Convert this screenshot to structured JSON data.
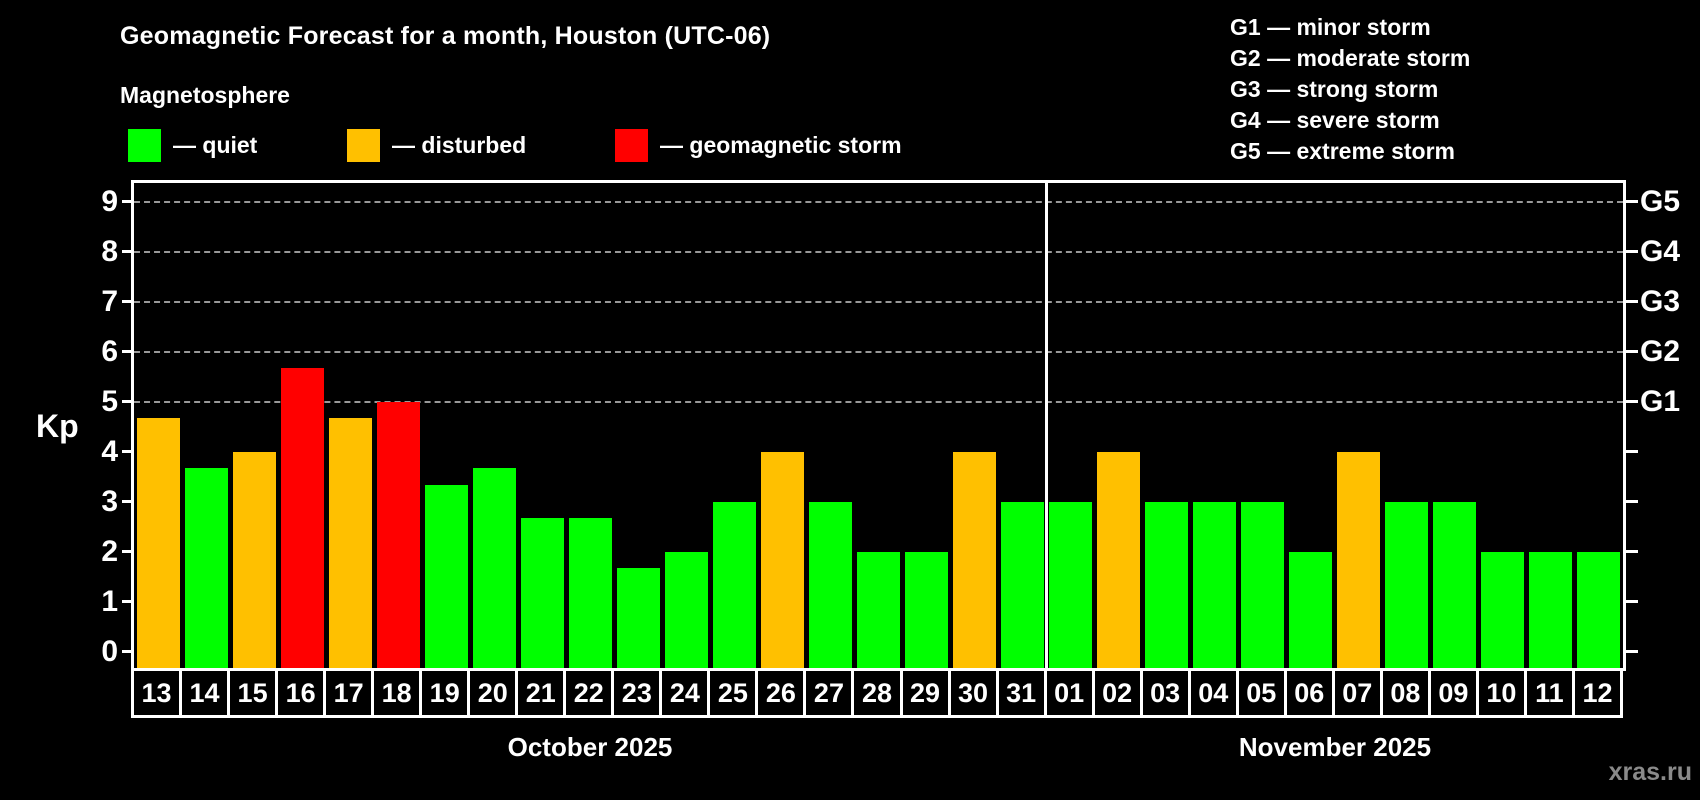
{
  "title": "Geomagnetic Forecast for a month, Houston (UTC-06)",
  "subtitle": "Magnetosphere",
  "legend": {
    "quiet_label": "— quiet",
    "disturbed_label": "— disturbed",
    "storm_label": "— geomagnetic storm"
  },
  "g_legend": [
    "G1 — minor storm",
    "G2 — moderate storm",
    "G3 — strong storm",
    "G4 — severe storm",
    "G5 — extreme storm"
  ],
  "watermark": "xras.ru",
  "colors": {
    "quiet": "#00ff00",
    "disturbed": "#ffc000",
    "storm": "#ff0000",
    "grid": "#999999",
    "axis": "#ffffff",
    "watermark": "#8a8a8a"
  },
  "chart_data": {
    "type": "bar",
    "title": "Geomagnetic Forecast for a month, Houston (UTC-06)",
    "ylabel": "Kp",
    "ylim": [
      -0.326,
      9.374
    ],
    "yticks": [
      0,
      1,
      2,
      3,
      4,
      5,
      6,
      7,
      8,
      9
    ],
    "grid_kp": [
      5,
      6,
      7,
      8,
      9
    ],
    "right_axis": [
      {
        "kp": 5,
        "label": "G1"
      },
      {
        "kp": 6,
        "label": "G2"
      },
      {
        "kp": 7,
        "label": "G3"
      },
      {
        "kp": 8,
        "label": "G4"
      },
      {
        "kp": 9,
        "label": "G5"
      }
    ],
    "legend_position": "top-left",
    "grid": "dashed-horizontal-on-storm-levels",
    "months": [
      {
        "label": "October 2025"
      },
      {
        "label": "November 2025"
      }
    ],
    "bars": [
      {
        "month": "October 2025",
        "day": "13",
        "kp": 4.67,
        "status": "disturbed"
      },
      {
        "month": "October 2025",
        "day": "14",
        "kp": 3.67,
        "status": "quiet"
      },
      {
        "month": "October 2025",
        "day": "15",
        "kp": 4.0,
        "status": "disturbed"
      },
      {
        "month": "October 2025",
        "day": "16",
        "kp": 5.67,
        "status": "storm"
      },
      {
        "month": "October 2025",
        "day": "17",
        "kp": 4.67,
        "status": "disturbed"
      },
      {
        "month": "October 2025",
        "day": "18",
        "kp": 5.0,
        "status": "storm"
      },
      {
        "month": "October 2025",
        "day": "19",
        "kp": 3.33,
        "status": "quiet"
      },
      {
        "month": "October 2025",
        "day": "20",
        "kp": 3.67,
        "status": "quiet"
      },
      {
        "month": "October 2025",
        "day": "21",
        "kp": 2.67,
        "status": "quiet"
      },
      {
        "month": "October 2025",
        "day": "22",
        "kp": 2.67,
        "status": "quiet"
      },
      {
        "month": "October 2025",
        "day": "23",
        "kp": 1.67,
        "status": "quiet"
      },
      {
        "month": "October 2025",
        "day": "24",
        "kp": 2.0,
        "status": "quiet"
      },
      {
        "month": "October 2025",
        "day": "25",
        "kp": 3.0,
        "status": "quiet"
      },
      {
        "month": "October 2025",
        "day": "26",
        "kp": 4.0,
        "status": "disturbed"
      },
      {
        "month": "October 2025",
        "day": "27",
        "kp": 3.0,
        "status": "quiet"
      },
      {
        "month": "October 2025",
        "day": "28",
        "kp": 2.0,
        "status": "quiet"
      },
      {
        "month": "October 2025",
        "day": "29",
        "kp": 2.0,
        "status": "quiet"
      },
      {
        "month": "October 2025",
        "day": "30",
        "kp": 4.0,
        "status": "disturbed"
      },
      {
        "month": "October 2025",
        "day": "31",
        "kp": 3.0,
        "status": "quiet"
      },
      {
        "month": "November 2025",
        "day": "01",
        "kp": 3.0,
        "status": "quiet"
      },
      {
        "month": "November 2025",
        "day": "02",
        "kp": 4.0,
        "status": "disturbed"
      },
      {
        "month": "November 2025",
        "day": "03",
        "kp": 3.0,
        "status": "quiet"
      },
      {
        "month": "November 2025",
        "day": "04",
        "kp": 3.0,
        "status": "quiet"
      },
      {
        "month": "November 2025",
        "day": "05",
        "kp": 3.0,
        "status": "quiet"
      },
      {
        "month": "November 2025",
        "day": "06",
        "kp": 2.0,
        "status": "quiet"
      },
      {
        "month": "November 2025",
        "day": "07",
        "kp": 4.0,
        "status": "disturbed"
      },
      {
        "month": "November 2025",
        "day": "08",
        "kp": 3.0,
        "status": "quiet"
      },
      {
        "month": "November 2025",
        "day": "09",
        "kp": 3.0,
        "status": "quiet"
      },
      {
        "month": "November 2025",
        "day": "10",
        "kp": 2.0,
        "status": "quiet"
      },
      {
        "month": "November 2025",
        "day": "11",
        "kp": 2.0,
        "status": "quiet"
      },
      {
        "month": "November 2025",
        "day": "12",
        "kp": 2.0,
        "status": "quiet"
      }
    ]
  }
}
